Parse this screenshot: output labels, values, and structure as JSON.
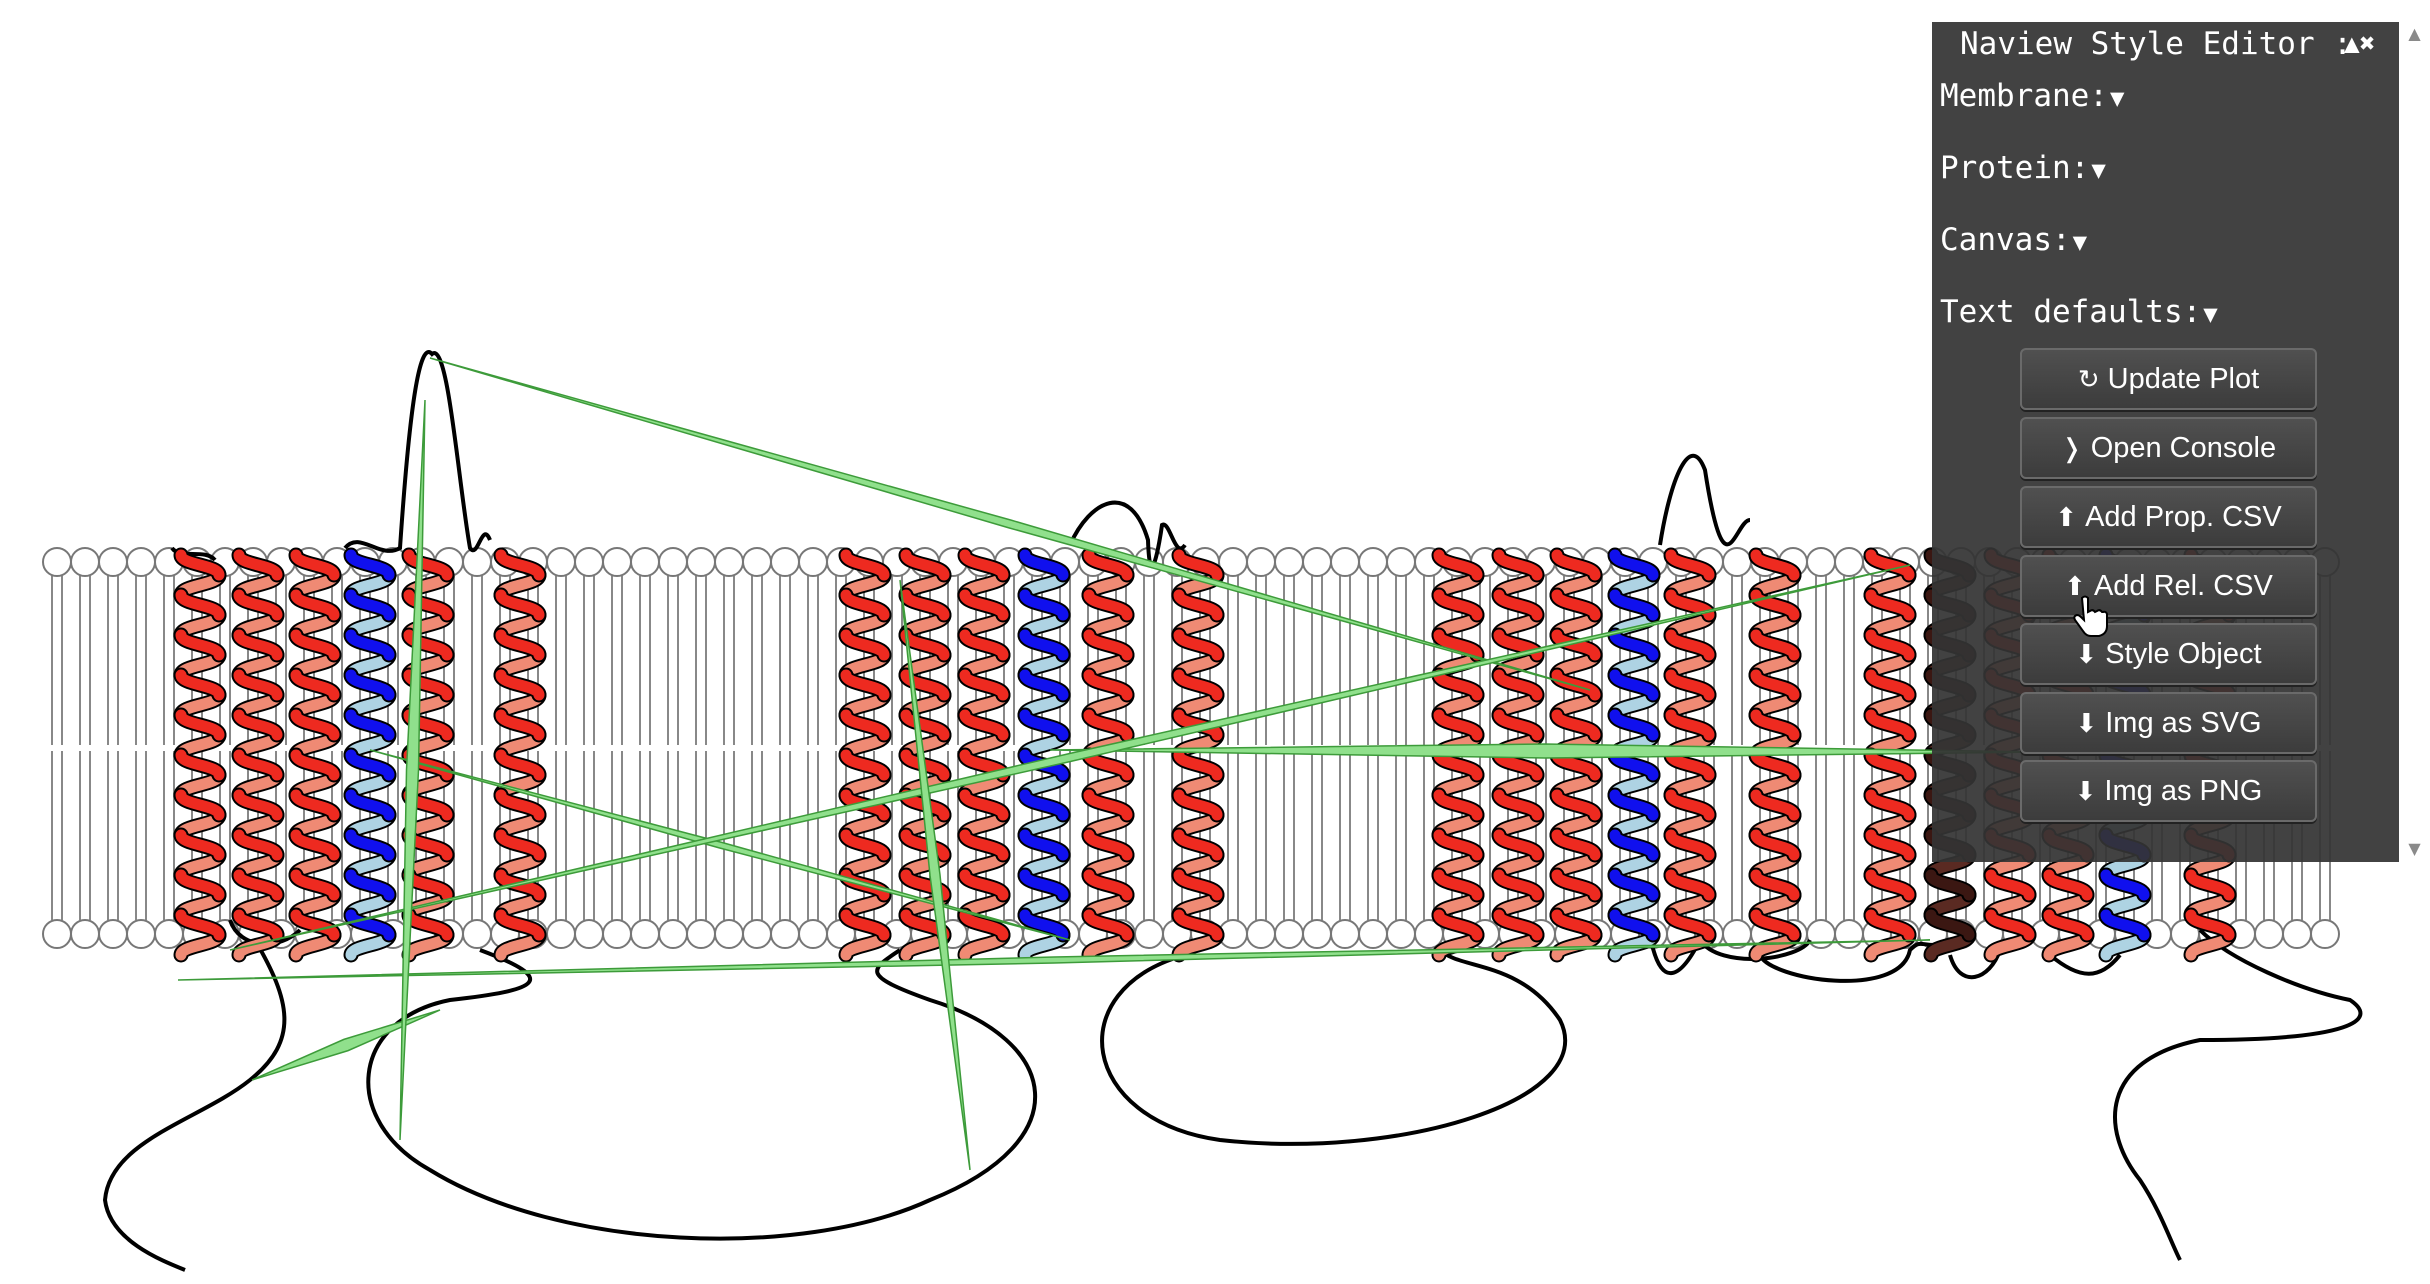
{
  "style_editor": {
    "title": "Naview Style Editor :",
    "controls": "▲✖",
    "sections": [
      {
        "label": "Membrane:",
        "arrow": "▼"
      },
      {
        "label": "Protein:",
        "arrow": "▼"
      },
      {
        "label": "Canvas:",
        "arrow": "▼"
      },
      {
        "label": "Text defaults:",
        "arrow": "▼"
      }
    ],
    "buttons": [
      {
        "icon": "↻",
        "label": "Update Plot"
      },
      {
        "icon": "❭",
        "label": "Open Console"
      },
      {
        "icon": "⬆",
        "label": "Add Prop. CSV"
      },
      {
        "icon": "⬆",
        "label": "Add Rel. CSV"
      },
      {
        "icon": "⬇",
        "label": "Style Object"
      },
      {
        "icon": "⬇",
        "label": "Img as SVG"
      },
      {
        "icon": "⬇",
        "label": "Img as PNG"
      }
    ]
  },
  "colors": {
    "helix_front": "#ee2a20",
    "helix_back": "#ef8a74",
    "helix_highlight_front": "#1010ee",
    "helix_highlight_back": "#aed3e3",
    "relation_fill": "#90e08c",
    "relation_stroke": "#3d9b3a",
    "lipid_stroke": "#888888",
    "panel_bg": "#343434"
  },
  "icons": {
    "scroll_up": "scroll-up-arrow-icon",
    "scroll_down": "scroll-down-arrow-icon",
    "cursor": "hand-pointer-icon"
  }
}
